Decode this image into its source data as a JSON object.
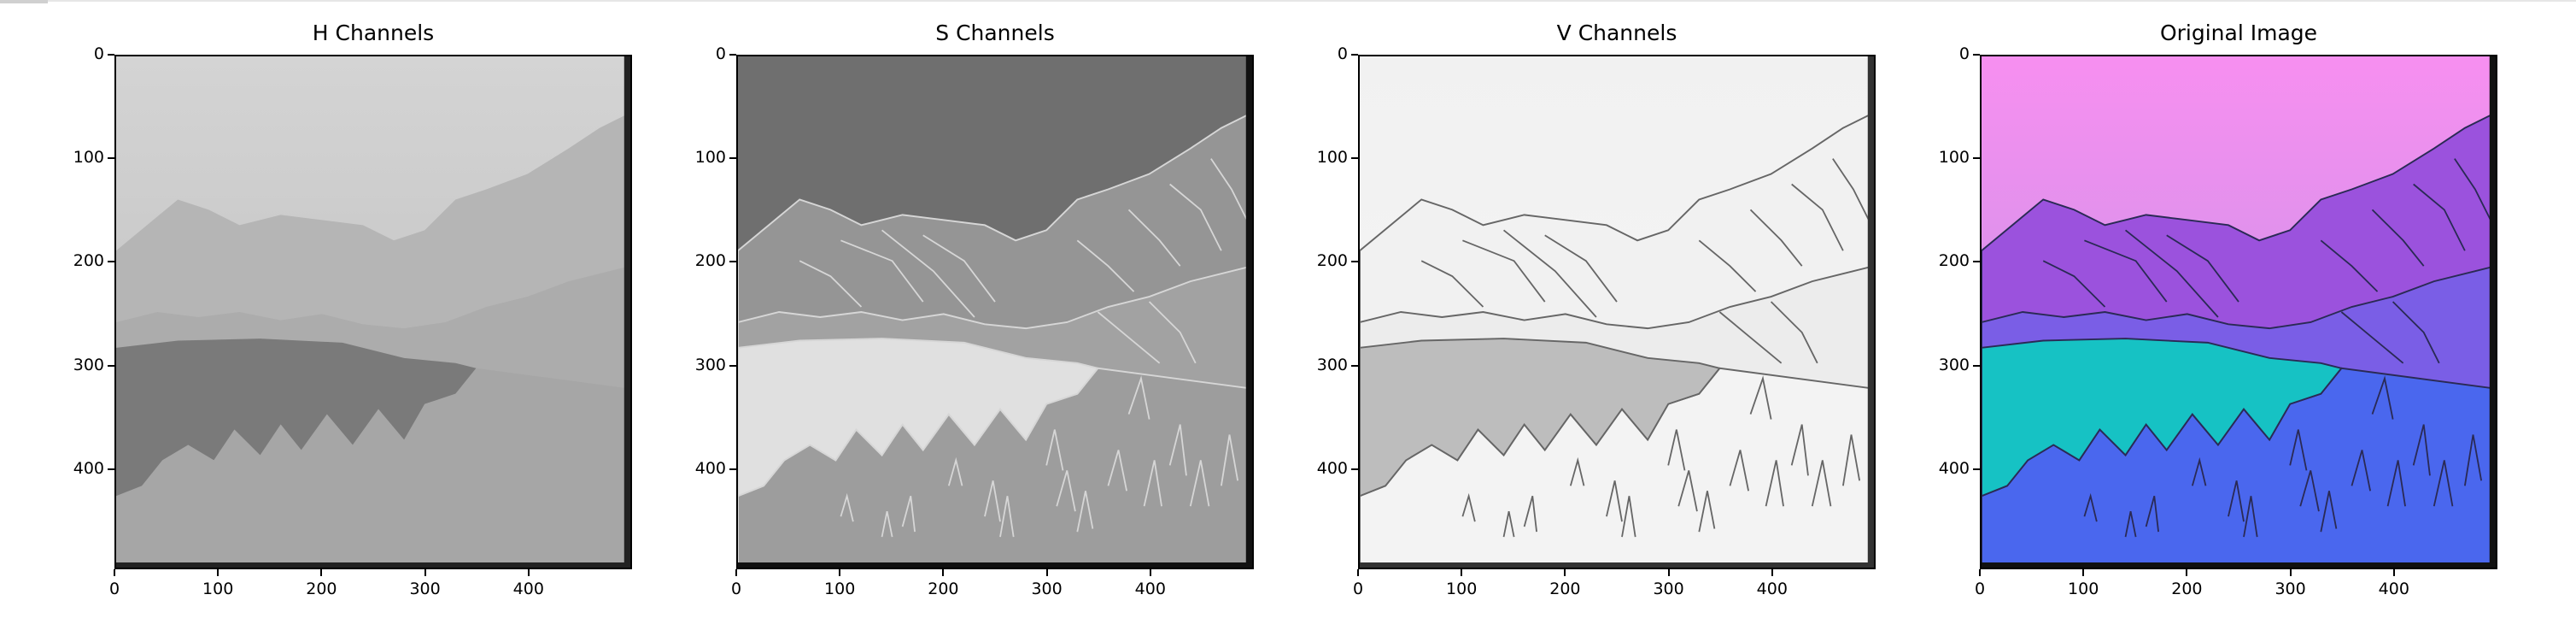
{
  "figure": {
    "panels": [
      {
        "title": "H Channels",
        "variant": "h"
      },
      {
        "title": "S Channels",
        "variant": "s"
      },
      {
        "title": "V Channels",
        "variant": "v"
      },
      {
        "title": "Original Image",
        "variant": "rgb"
      }
    ],
    "yticks": [
      "0",
      "100",
      "200",
      "300",
      "400"
    ],
    "xticks": [
      "0",
      "100",
      "200",
      "300",
      "400"
    ]
  },
  "colors": {
    "sky_top": "#f78ff0",
    "sky_bottom": "#b995e6",
    "mountain": "#9b52dd",
    "lake": "#16c2c4",
    "ground": "#4a67ee",
    "outline": "#2a2a55"
  }
}
